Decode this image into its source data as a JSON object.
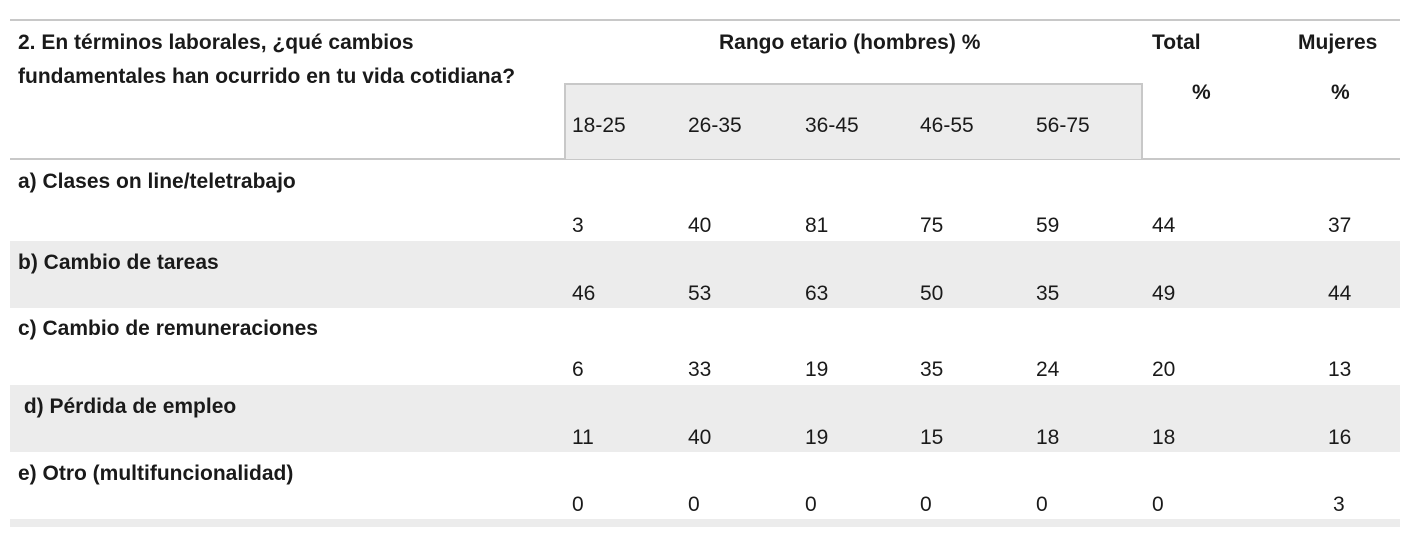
{
  "header": {
    "question_line1": "2. En términos laborales, ¿qué cambios",
    "question_line2": "fundamentales han ocurrido  en tu vida cotidiana?",
    "age_group_title": "Rango etario (hombres) %",
    "total_title": "Total",
    "total_unit": "%",
    "women_title": "Mujeres",
    "women_unit": "%",
    "age_ranges": [
      "18-25",
      "26-35",
      "36-45",
      "46-55",
      "56-75"
    ]
  },
  "rows": [
    {
      "label": "a) Clases on line/teletrabajo",
      "values": [
        "3",
        "40",
        "81",
        "75",
        "59"
      ],
      "total": "44",
      "women": "37"
    },
    {
      "label": "b) Cambio de tareas",
      "values": [
        "46",
        "53",
        "63",
        "50",
        "35"
      ],
      "total": "49",
      "women": "44"
    },
    {
      "label": "c) Cambio  de remuneraciones",
      "values": [
        "6",
        "33",
        "19",
        "35",
        "24"
      ],
      "total": "20",
      "women": "13"
    },
    {
      "label": " d) Pérdida de empleo",
      "values": [
        "11",
        "40",
        "19",
        "15",
        "18"
      ],
      "total": "18",
      "women": "16"
    },
    {
      "label": "e) Otro  (multifuncionalidad)",
      "values": [
        "0",
        "0",
        "0",
        "0",
        "0"
      ],
      "total": "0",
      "women": "3"
    }
  ]
}
